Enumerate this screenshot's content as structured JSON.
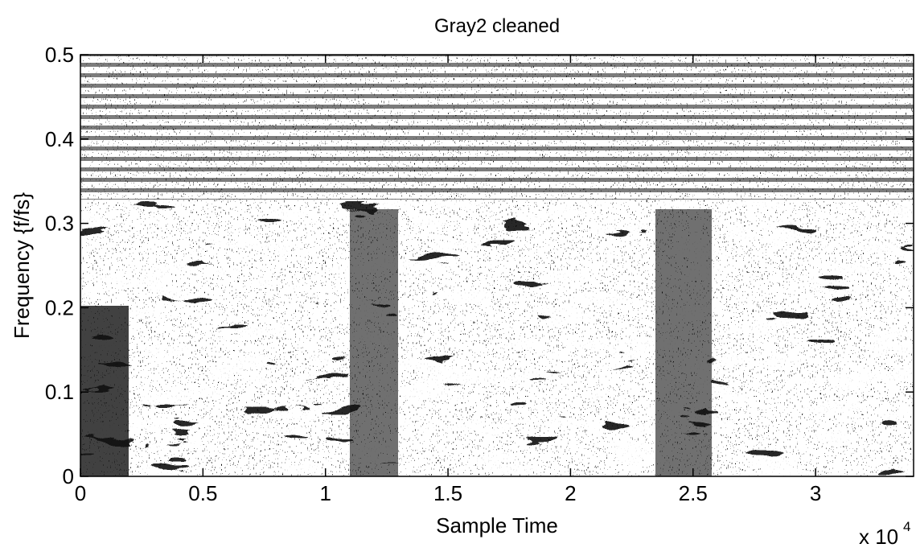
{
  "chart_data": {
    "type": "spectrogram",
    "title": "Gray2 cleaned",
    "xlabel": "Sample Time",
    "ylabel": "Frequency {f/fs}",
    "x_scale": {
      "base": "x 10",
      "exponent": "4"
    },
    "xlim": [
      0,
      3.4
    ],
    "xticks": [
      0,
      0.5,
      1,
      1.5,
      2,
      2.5,
      3
    ],
    "ylim": [
      0,
      0.5
    ],
    "yticks": [
      0,
      0.1,
      0.2,
      0.3,
      0.4,
      0.5
    ]
  }
}
